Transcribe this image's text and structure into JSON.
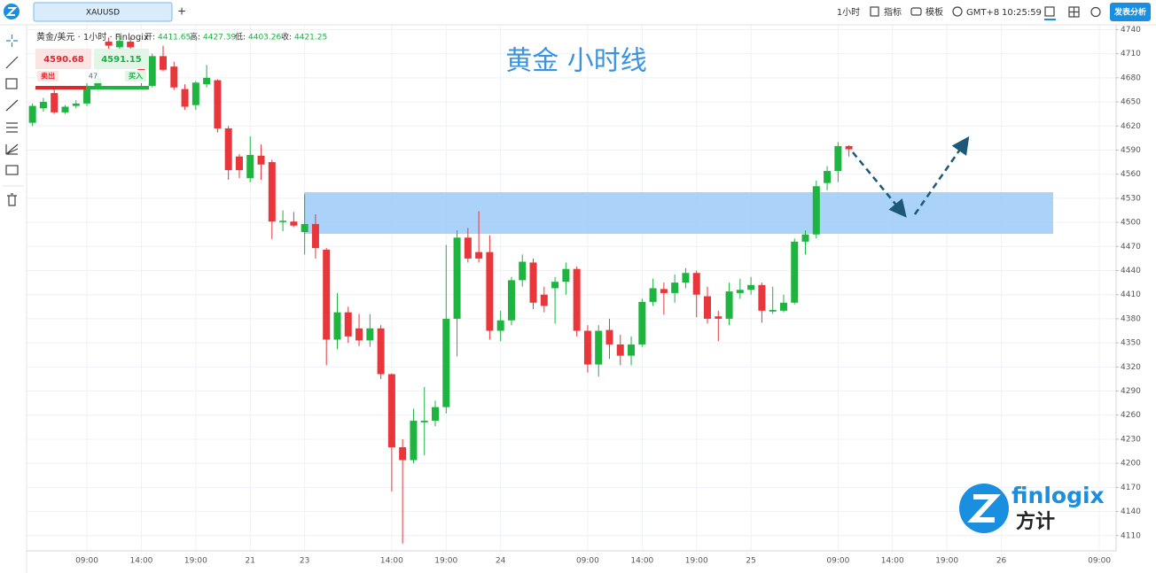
{
  "toolbar": {
    "tab": "XAUUSD",
    "new_tab": "+",
    "interval": "1小时",
    "indicators": "指标",
    "templates": "模板",
    "timezone": "GMT+8",
    "clock": "10:25:59",
    "publish": "发表分析"
  },
  "legend": {
    "symbol": "黄金/美元 · 1小时 · Finlogix",
    "open_label": "开:",
    "open": "4411.65",
    "high_label": "高:",
    "high": "4427.39",
    "low_label": "低:",
    "low": "4403.26",
    "close_label": "收:",
    "close": "4421.25"
  },
  "trade_panel": {
    "sell_price": "4590.68",
    "buy_price": "4591.15",
    "sell": "卖出",
    "spread": "47",
    "buy": "买入"
  },
  "logo": {
    "brand": "finlogix",
    "brand_cn": "方计"
  },
  "chart_data": {
    "type": "candlestick",
    "title": "黄金 小时线",
    "up_color": "#1db43f",
    "down_color": "#e8363a",
    "grid": true,
    "ylim": [
      4091,
      4746
    ],
    "yticks": [
      4110,
      4140,
      4170,
      4200,
      4230,
      4260,
      4290,
      4320,
      4350,
      4380,
      4410,
      4440,
      4470,
      4500,
      4530,
      4560,
      4590,
      4620,
      4650,
      4680,
      4710,
      4740
    ],
    "categories": [
      null,
      null,
      null,
      null,
      null,
      "09:00",
      null,
      null,
      null,
      null,
      "14:00",
      null,
      null,
      null,
      null,
      "19:00",
      null,
      null,
      null,
      null,
      "21",
      null,
      null,
      null,
      null,
      "23",
      null,
      null,
      null,
      null,
      null,
      null,
      null,
      "14:00",
      null,
      null,
      null,
      null,
      "19:00",
      null,
      null,
      null,
      null,
      "24",
      null,
      null,
      null,
      null,
      null,
      null,
      null,
      "09:00",
      null,
      null,
      null,
      null,
      "14:00",
      null,
      null,
      null,
      null,
      "19:00",
      null,
      null,
      null,
      null,
      "25",
      null,
      null,
      null,
      null,
      null,
      null,
      null,
      "09:00",
      null,
      null,
      null,
      null,
      "14:00",
      null,
      null,
      null,
      null,
      "19:00",
      null,
      null,
      null,
      null,
      "26",
      null,
      null,
      null,
      null,
      null,
      null,
      null,
      null,
      "09:00",
      null
    ],
    "open": [
      4624,
      4642,
      4661,
      4637,
      4645,
      4648,
      4670,
      4725,
      4718,
      4725,
      4700,
      4670,
      4707,
      4694,
      4666,
      4646,
      4672,
      4677,
      4617,
      4582,
      4555,
      4583,
      4575,
      4501,
      4501,
      4488,
      4498,
      4466,
      4354,
      4388,
      4368,
      4353,
      4368,
      4311,
      4220,
      4204,
      4251,
      4253,
      4270,
      4380,
      4481,
      4463,
      4463,
      4365,
      4378,
      4428,
      4450,
      4410,
      4418,
      4426,
      4442,
      4365,
      4323,
      4366,
      4348,
      4334,
      4348,
      4401,
      4417,
      4412,
      4425,
      4437,
      4408,
      4383,
      4380,
      4412,
      4416,
      4422,
      4389,
      4390,
      4400,
      4476,
      4485,
      4549,
      4564,
      4595,
      null,
      null,
      null,
      null,
      null,
      null,
      null,
      null,
      null,
      null,
      null,
      null,
      null,
      null,
      null,
      null,
      null,
      null,
      null,
      null,
      null,
      null,
      null,
      null
    ],
    "high": [
      4648,
      4655,
      4668,
      4646,
      4652,
      4680,
      4690,
      4730,
      4735,
      4730,
      4710,
      4710,
      4720,
      4700,
      4672,
      4676,
      4696,
      4678,
      4620,
      4585,
      4607,
      4597,
      4578,
      4515,
      4513,
      4535,
      4510,
      4468,
      4412,
      4395,
      4386,
      4386,
      4372,
      4312,
      4230,
      4268,
      4295,
      4278,
      4472,
      4490,
      4493,
      4514,
      4484,
      4390,
      4432,
      4460,
      4455,
      4420,
      4432,
      4450,
      4445,
      4372,
      4372,
      4380,
      4360,
      4358,
      4405,
      4430,
      4425,
      4435,
      4443,
      4440,
      4420,
      4390,
      4425,
      4430,
      4432,
      4425,
      4420,
      4410,
      4480,
      4490,
      4552,
      4570,
      4600,
      4596,
      null,
      null,
      null,
      null,
      null,
      null,
      null,
      null,
      null,
      null,
      null,
      null,
      null,
      null,
      null,
      null,
      null,
      null,
      null,
      null,
      null,
      null,
      null,
      null
    ],
    "low": [
      4620,
      4638,
      4635,
      4635,
      4642,
      4645,
      4665,
      4715,
      4712,
      4700,
      4670,
      4668,
      4688,
      4665,
      4640,
      4640,
      4668,
      4612,
      4553,
      4555,
      4550,
      4553,
      4479,
      4489,
      4494,
      4460,
      4455,
      4322,
      4342,
      4350,
      4346,
      4345,
      4305,
      4165,
      4100,
      4200,
      4210,
      4246,
      4262,
      4333,
      4450,
      4450,
      4354,
      4352,
      4372,
      4420,
      4392,
      4388,
      4374,
      4410,
      4358,
      4313,
      4308,
      4330,
      4322,
      4322,
      4345,
      4396,
      4385,
      4400,
      4418,
      4382,
      4374,
      4352,
      4372,
      4405,
      4410,
      4375,
      4386,
      4388,
      4398,
      4460,
      4480,
      4540,
      4550,
      4582,
      null,
      null,
      null,
      null,
      null,
      null,
      null,
      null,
      null,
      null,
      null,
      null,
      null,
      null,
      null,
      null,
      null,
      null,
      null,
      null,
      null,
      null,
      null,
      null
    ],
    "close": [
      4645,
      4650,
      4637,
      4644,
      4648,
      4670,
      4680,
      4720,
      4726,
      4718,
      4680,
      4707,
      4690,
      4668,
      4644,
      4674,
      4680,
      4617,
      4565,
      4565,
      4584,
      4572,
      4501,
      4502,
      4496,
      4498,
      4468,
      4354,
      4388,
      4358,
      4353,
      4368,
      4311,
      4220,
      4204,
      4253,
      4253,
      4270,
      4380,
      4481,
      4455,
      4455,
      4365,
      4378,
      4428,
      4451,
      4400,
      4396,
      4426,
      4442,
      4365,
      4323,
      4365,
      4348,
      4334,
      4348,
      4401,
      4418,
      4412,
      4425,
      4437,
      4410,
      4380,
      4380,
      4414,
      4416,
      4422,
      4390,
      4391,
      4400,
      4476,
      4485,
      4545,
      4564,
      4595,
      4591,
      null,
      null,
      null,
      null,
      null,
      null,
      null,
      null,
      null,
      null,
      null,
      null,
      null,
      null,
      null,
      null,
      null,
      null,
      null,
      null,
      null,
      null,
      null,
      null
    ]
  }
}
